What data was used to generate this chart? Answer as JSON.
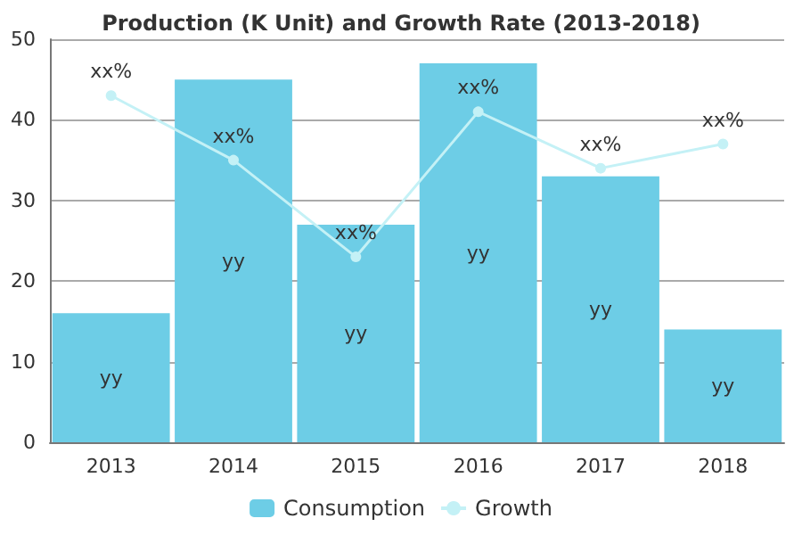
{
  "chart_data": {
    "type": "bar",
    "title": "Production (K Unit) and Growth Rate (2013-2018)",
    "categories": [
      "2013",
      "2014",
      "2015",
      "2016",
      "2017",
      "2018"
    ],
    "series": [
      {
        "name": "Consumption",
        "color": "#6dcde6",
        "values": [
          16,
          45,
          27,
          47,
          33,
          14
        ],
        "value_labels": [
          "yy",
          "yy",
          "yy",
          "yy",
          "yy",
          "yy"
        ]
      },
      {
        "name": "Growth",
        "type": "line",
        "color": "#c4f1f6",
        "marker": "circle",
        "values": [
          43,
          35,
          23,
          41,
          34,
          37
        ],
        "value_labels": [
          "xx%",
          "xx%",
          "xx%",
          "xx%",
          "xx%",
          "xx%"
        ]
      }
    ],
    "ylim": [
      0,
      50
    ],
    "yticks": [
      0,
      10,
      20,
      30,
      40,
      50
    ],
    "grid": "y",
    "legend": "bottom"
  }
}
